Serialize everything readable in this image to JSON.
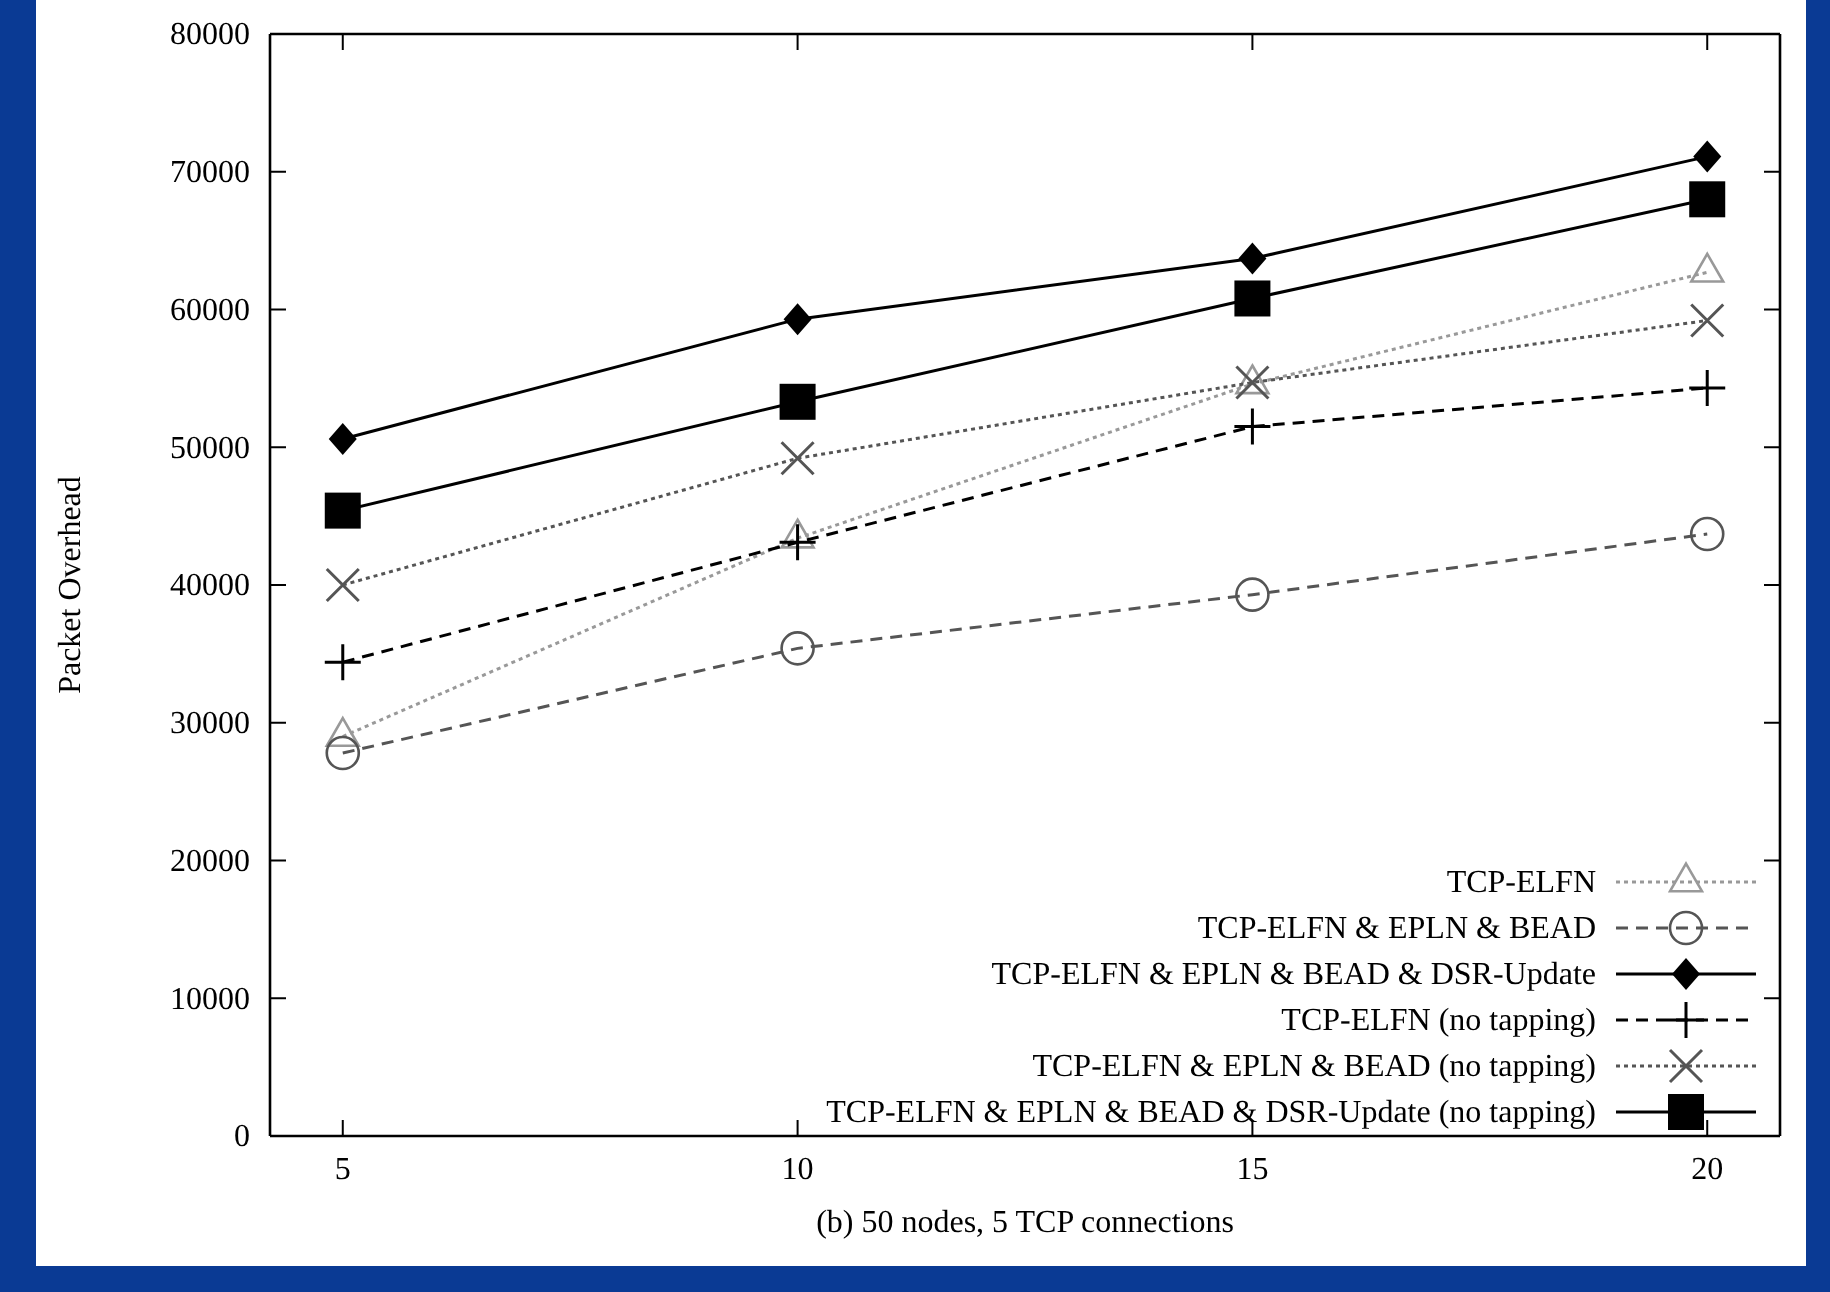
{
  "chart_data": {
    "type": "line",
    "xlabel": "(b) 50 nodes, 5 TCP connections",
    "ylabel": "Packet Overhead",
    "x": [
      5,
      10,
      15,
      20
    ],
    "xlim": [
      4.2,
      20.8
    ],
    "xticks": [
      5,
      10,
      15,
      20
    ],
    "ylim": [
      0,
      80000
    ],
    "yticks": [
      0,
      10000,
      20000,
      30000,
      40000,
      50000,
      60000,
      70000,
      80000
    ],
    "legend": "bottom right",
    "grid": false,
    "series": [
      {
        "name": "TCP-ELFN",
        "color": "#999999",
        "marker": "triangle",
        "line_style": "dotted",
        "values": [
          29000,
          43400,
          54600,
          62700
        ]
      },
      {
        "name": "TCP-ELFN & EPLN & BEAD",
        "color": "#555555",
        "marker": "circle",
        "line_style": "dashed",
        "values": [
          27800,
          35400,
          39300,
          43700
        ]
      },
      {
        "name": "TCP-ELFN & EPLN & BEAD & DSR-Update",
        "color": "#000000",
        "marker": "diamond",
        "line_style": "solid",
        "values": [
          50600,
          59300,
          63700,
          71100
        ]
      },
      {
        "name": "TCP-ELFN (no tapping)",
        "color": "#000000",
        "marker": "cross",
        "line_style": "dashed",
        "values": [
          34400,
          43100,
          51500,
          54300
        ]
      },
      {
        "name": "TCP-ELFN & EPLN & BEAD (no tapping)",
        "color": "#555555",
        "marker": "x",
        "line_style": "dotted",
        "values": [
          40000,
          49200,
          54700,
          59200
        ]
      },
      {
        "name": "TCP-ELFN & EPLN & BEAD & DSR-Update (no tapping)",
        "color": "#000000",
        "marker": "square",
        "line_style": "solid",
        "values": [
          45400,
          53300,
          60800,
          68000
        ]
      }
    ]
  }
}
